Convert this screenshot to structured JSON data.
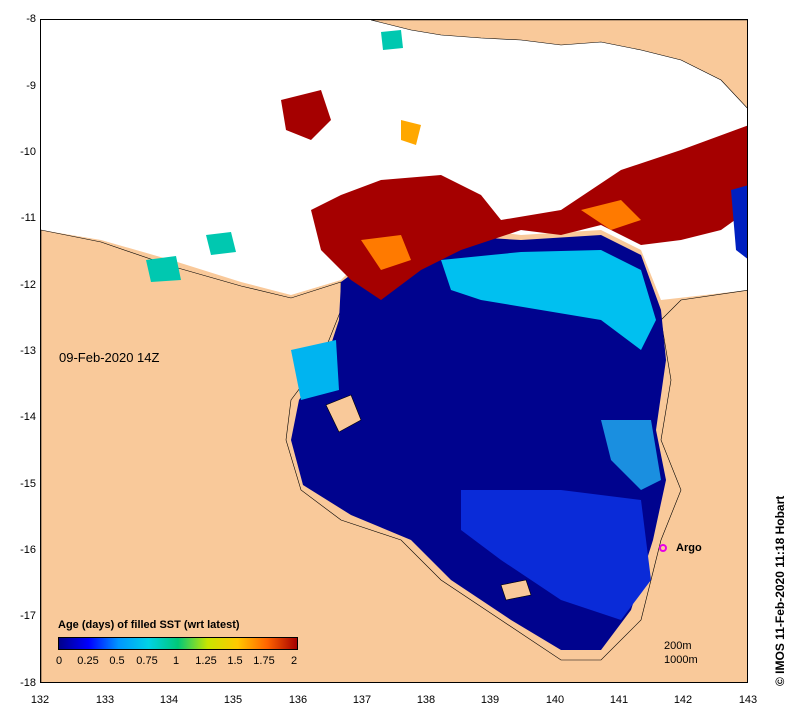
{
  "map": {
    "date_label": "09-Feb-2020 14Z",
    "lon_ticks": [
      "132",
      "133",
      "134",
      "135",
      "136",
      "137",
      "138",
      "139",
      "140",
      "141",
      "142",
      "143"
    ],
    "lat_ticks": [
      "-8",
      "-9",
      "-10",
      "-11",
      "-12",
      "-13",
      "-14",
      "-15",
      "-16",
      "-17",
      "-18"
    ],
    "lon_range": [
      132,
      143
    ],
    "lat_range": [
      -8,
      -18
    ],
    "argo_label": "Argo",
    "argo_position": {
      "lon": 141.7,
      "lat": -16.0
    },
    "contour_labels": [
      "200m",
      "1000m"
    ],
    "credit": "© IMOS 11-Feb-2020 11:18 Hobart",
    "colors": {
      "land": "#f9c99a",
      "nodata": "#ffffff"
    }
  },
  "legend": {
    "title": "Age (days) of filled SST (wrt latest)",
    "ticks": [
      "0",
      "0.25",
      "0.5",
      "0.75",
      "1",
      "1.25",
      "1.5",
      "1.75",
      "2"
    ],
    "range": [
      0,
      2
    ],
    "colors": [
      "#00008b",
      "#0000ff",
      "#0096ff",
      "#00d2e6",
      "#00c878",
      "#c8e600",
      "#ffc800",
      "#ff6400",
      "#a50000"
    ]
  }
}
